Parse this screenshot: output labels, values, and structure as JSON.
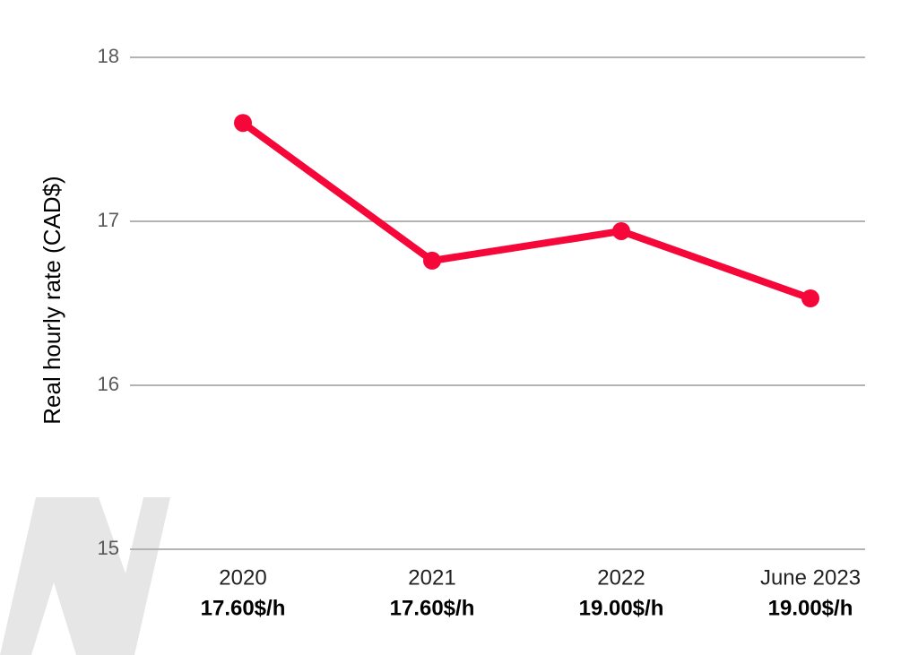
{
  "chart_data": {
    "type": "line",
    "y_axis_label": "Real hourly rate (CAD$)",
    "categories": [
      "2020",
      "2021",
      "2022",
      "June 2023"
    ],
    "category_notes": [
      "17.60$/h",
      "17.60$/h",
      "19.00$/h",
      "19.00$/h"
    ],
    "series": [
      {
        "color": "#f5073a",
        "values": [
          17.6,
          16.76,
          16.94,
          16.53
        ]
      }
    ],
    "ylim": [
      15,
      18
    ],
    "yticks": [
      15,
      16,
      17,
      18
    ],
    "grid": true
  }
}
